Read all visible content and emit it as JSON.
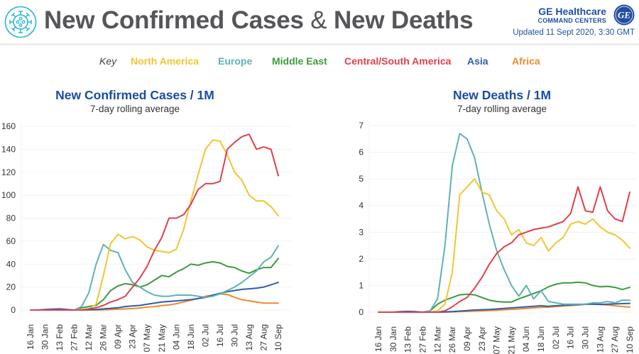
{
  "header": {
    "title_part1": "New Confirmed Cases",
    "title_amp": "&",
    "title_part2": "New Deaths",
    "icon": "virus-icon",
    "brand_name": "GE Healthcare",
    "brand_sub": "COMMAND CENTERS",
    "brand_logo": "ge-monogram-icon",
    "updated": "Updated 11 Sept 2020, 3:30 GMT"
  },
  "legend": {
    "key_label": "Key",
    "items": [
      {
        "label": "North America",
        "color": "#f2c531"
      },
      {
        "label": "Europe",
        "color": "#5fb3b3"
      },
      {
        "label": "Middle East",
        "color": "#3e9a3e"
      },
      {
        "label": "Central/South America",
        "color": "#e0404b"
      },
      {
        "label": "Asia",
        "color": "#2f5ea8"
      },
      {
        "label": "Africa",
        "color": "#f08a2c"
      }
    ]
  },
  "chart_data": [
    {
      "type": "line",
      "title": "New Confirmed Cases / 1M",
      "subtitle": "7-day rolling average",
      "xlabel": "",
      "ylabel": "",
      "ylim": [
        0,
        160
      ],
      "yticks": [
        0,
        20,
        40,
        60,
        80,
        100,
        120,
        140,
        160
      ],
      "grid": true,
      "legend": "top",
      "xtick_labels": [
        "16 Jan",
        "30 Jan",
        "13 Feb",
        "27 Feb",
        "12 Mar",
        "26 Mar",
        "09 Apr",
        "23 Apr",
        "07 May",
        "21 May",
        "04 Jun",
        "18 Jun",
        "02 Jul",
        "16 Jul",
        "30 Jul",
        "13 Aug",
        "27 Aug",
        "10 Sep"
      ],
      "x": [
        "16 Jan",
        "23 Jan",
        "30 Jan",
        "06 Feb",
        "13 Feb",
        "20 Feb",
        "27 Feb",
        "05 Mar",
        "12 Mar",
        "19 Mar",
        "26 Mar",
        "02 Apr",
        "09 Apr",
        "16 Apr",
        "23 Apr",
        "30 Apr",
        "07 May",
        "14 May",
        "21 May",
        "28 May",
        "04 Jun",
        "11 Jun",
        "18 Jun",
        "25 Jun",
        "02 Jul",
        "09 Jul",
        "16 Jul",
        "23 Jul",
        "30 Jul",
        "06 Aug",
        "13 Aug",
        "20 Aug",
        "27 Aug",
        "03 Sep",
        "10 Sep"
      ],
      "series": [
        {
          "name": "North America",
          "color": "#f2c531",
          "values": [
            0,
            0,
            0,
            0,
            0,
            0,
            0,
            0.5,
            1,
            5,
            30,
            58,
            66,
            62,
            64,
            61,
            55,
            52,
            51,
            50,
            53,
            70,
            95,
            118,
            140,
            148,
            147,
            135,
            120,
            113,
            100,
            95,
            95,
            90,
            82
          ]
        },
        {
          "name": "Europe",
          "color": "#5fb3b3",
          "values": [
            0,
            0,
            0,
            0,
            0,
            0,
            0,
            3,
            15,
            40,
            57,
            52,
            50,
            35,
            24,
            20,
            16,
            13,
            12,
            12,
            13,
            13,
            13,
            12,
            11,
            12,
            14,
            17,
            20,
            24,
            29,
            34,
            42,
            46,
            56
          ]
        },
        {
          "name": "Middle East",
          "color": "#3e9a3e",
          "values": [
            0,
            0,
            0,
            0,
            0,
            0,
            0,
            2,
            3,
            4,
            9,
            17,
            21,
            23,
            22,
            20,
            22,
            26,
            30,
            29,
            33,
            36,
            40,
            39,
            41,
            42,
            41,
            38,
            37,
            34,
            32,
            35,
            37,
            37,
            45
          ]
        },
        {
          "name": "Central/South America",
          "color": "#e0404b",
          "values": [
            0,
            0,
            0,
            0,
            0,
            0,
            0,
            0,
            1,
            2,
            4,
            7,
            9,
            12,
            20,
            28,
            38,
            52,
            63,
            80,
            80,
            83,
            92,
            105,
            110,
            110,
            112,
            140,
            146,
            151,
            153,
            140,
            142,
            140,
            117
          ]
        },
        {
          "name": "Asia",
          "color": "#2f5ea8",
          "values": [
            0,
            0,
            0.5,
            0.8,
            1,
            0.5,
            0,
            0,
            0.3,
            0.5,
            1,
            1.5,
            2,
            3,
            3.5,
            4,
            5,
            6,
            7,
            7.5,
            8,
            8.5,
            9,
            10,
            11,
            13,
            14.5,
            16,
            17,
            18,
            18.5,
            19,
            20,
            22,
            24
          ]
        },
        {
          "name": "Africa",
          "color": "#f08a2c",
          "values": [
            0,
            0,
            0,
            0,
            0,
            0,
            0,
            0,
            0,
            0,
            0.2,
            0.4,
            0.7,
            1,
            1.3,
            1.8,
            2.5,
            3,
            3.8,
            4.5,
            5.5,
            7,
            8.5,
            10,
            12,
            13,
            14,
            13.5,
            11,
            9,
            8,
            7,
            6,
            6,
            6
          ]
        }
      ]
    },
    {
      "type": "line",
      "title": "New Deaths / 1M",
      "subtitle": "7-day rolling average",
      "xlabel": "",
      "ylabel": "",
      "ylim": [
        0,
        7
      ],
      "yticks": [
        0,
        1,
        2,
        3,
        4,
        5,
        6,
        7
      ],
      "grid": true,
      "legend": "top",
      "xtick_labels": [
        "16 Jan",
        "30 Jan",
        "13 Feb",
        "27 Feb",
        "12 Mar",
        "26 Mar",
        "09 Apr",
        "23 Apr",
        "07 May",
        "21 May",
        "04 Jun",
        "18 Jun",
        "02 Jul",
        "16 Jul",
        "30 Jul",
        "13 Aug",
        "27 Aug",
        "10 Sep"
      ],
      "x": [
        "16 Jan",
        "23 Jan",
        "30 Jan",
        "06 Feb",
        "13 Feb",
        "20 Feb",
        "27 Feb",
        "05 Mar",
        "12 Mar",
        "19 Mar",
        "26 Mar",
        "02 Apr",
        "09 Apr",
        "16 Apr",
        "23 Apr",
        "30 Apr",
        "07 May",
        "14 May",
        "21 May",
        "28 May",
        "04 Jun",
        "11 Jun",
        "18 Jun",
        "25 Jun",
        "02 Jul",
        "09 Jul",
        "16 Jul",
        "23 Jul",
        "30 Jul",
        "06 Aug",
        "13 Aug",
        "20 Aug",
        "27 Aug",
        "03 Sep",
        "10 Sep"
      ],
      "series": [
        {
          "name": "North America",
          "color": "#f2c531",
          "values": [
            0,
            0,
            0,
            0,
            0,
            0,
            0,
            0,
            0.05,
            0.3,
            1.5,
            4.4,
            4.7,
            5.0,
            4.5,
            4.4,
            3.8,
            3.5,
            2.9,
            3.1,
            2.6,
            2.5,
            2.8,
            2.3,
            2.6,
            2.8,
            3.3,
            3.4,
            3.3,
            3.5,
            3.2,
            3.0,
            2.9,
            2.7,
            2.4
          ]
        },
        {
          "name": "Europe",
          "color": "#5fb3b3",
          "values": [
            0,
            0,
            0,
            0,
            0,
            0,
            0,
            0.05,
            0.5,
            2.5,
            5.5,
            6.7,
            6.5,
            5.8,
            4.5,
            3.3,
            2.3,
            1.6,
            1.0,
            0.6,
            1.0,
            0.5,
            0.8,
            0.4,
            0.35,
            0.3,
            0.3,
            0.3,
            0.3,
            0.35,
            0.35,
            0.4,
            0.35,
            0.45,
            0.45
          ]
        },
        {
          "name": "Middle East",
          "color": "#3e9a3e",
          "values": [
            0,
            0,
            0,
            0,
            0,
            0,
            0,
            0.05,
            0.3,
            0.45,
            0.55,
            0.65,
            0.67,
            0.65,
            0.55,
            0.45,
            0.4,
            0.38,
            0.38,
            0.5,
            0.6,
            0.7,
            0.8,
            0.95,
            1.05,
            1.1,
            1.1,
            1.12,
            1.1,
            1.0,
            0.95,
            0.97,
            0.93,
            0.85,
            0.93
          ]
        },
        {
          "name": "Central/South America",
          "color": "#e0404b",
          "values": [
            0,
            0,
            0,
            0,
            0,
            0,
            0,
            0,
            0,
            0.05,
            0.2,
            0.4,
            0.55,
            0.9,
            1.3,
            1.8,
            2.2,
            2.45,
            2.6,
            2.9,
            3.0,
            3.1,
            3.15,
            3.2,
            3.3,
            3.4,
            3.7,
            4.7,
            3.8,
            3.75,
            4.7,
            3.8,
            3.5,
            3.4,
            4.5
          ]
        },
        {
          "name": "Asia",
          "color": "#2f5ea8",
          "values": [
            0,
            0,
            0,
            0.02,
            0.03,
            0.02,
            0,
            0,
            0,
            0.01,
            0.02,
            0.04,
            0.06,
            0.08,
            0.09,
            0.1,
            0.12,
            0.14,
            0.16,
            0.18,
            0.2,
            0.22,
            0.24,
            0.22,
            0.24,
            0.26,
            0.27,
            0.28,
            0.3,
            0.3,
            0.29,
            0.3,
            0.31,
            0.32,
            0.33
          ]
        },
        {
          "name": "Africa",
          "color": "#f08a2c",
          "values": [
            0,
            0,
            0,
            0,
            0,
            0,
            0,
            0,
            0,
            0,
            0.01,
            0.02,
            0.03,
            0.04,
            0.05,
            0.06,
            0.07,
            0.09,
            0.1,
            0.12,
            0.14,
            0.16,
            0.18,
            0.19,
            0.21,
            0.23,
            0.25,
            0.27,
            0.29,
            0.3,
            0.29,
            0.27,
            0.24,
            0.21,
            0.19
          ]
        }
      ]
    }
  ]
}
